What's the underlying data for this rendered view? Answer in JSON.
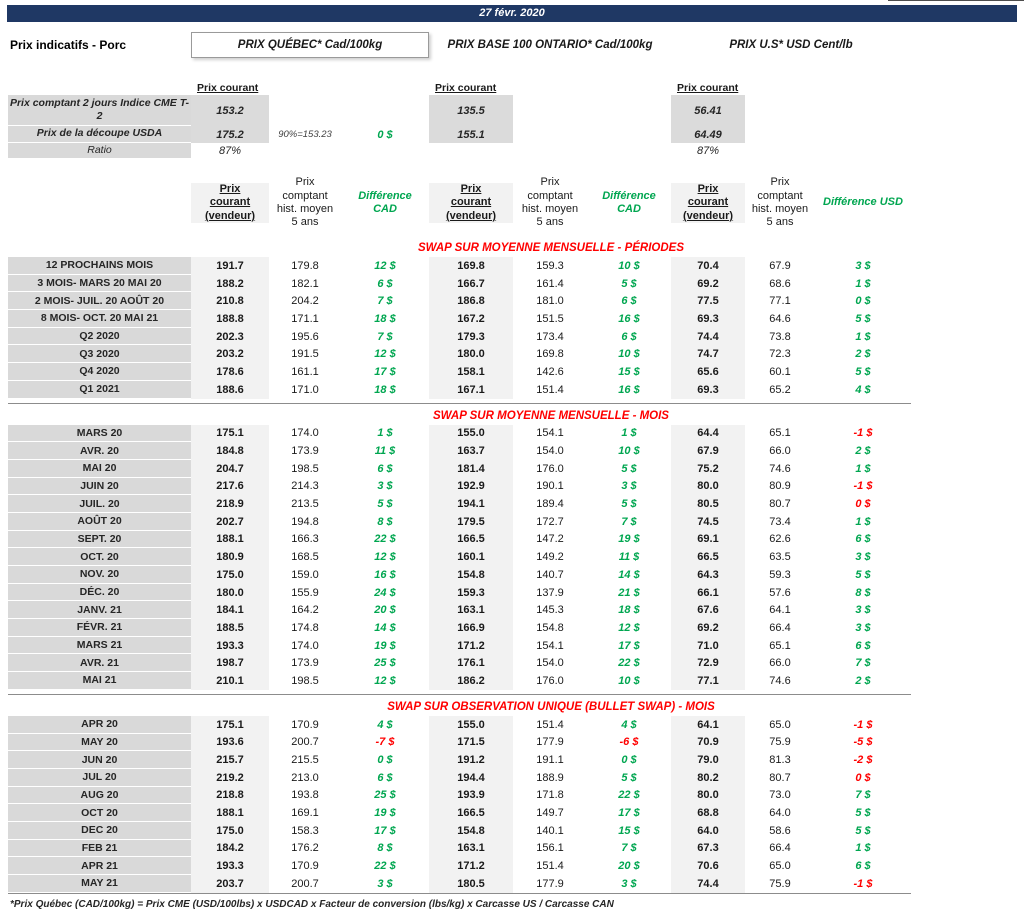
{
  "page": {
    "date": "27 févr. 2020",
    "title": "Prix indicatifs - Porc",
    "footnote": "*Prix Québec (CAD/100kg) = Prix CME (USD/100lbs) x USDCAD x Facteur de conversion (lbs/kg) x Carcasse US / Carcasse CAN"
  },
  "regions": [
    {
      "title": "PRIX QUÉBEC* Cad/100kg"
    },
    {
      "title": "PRIX BASE 100 ONTARIO* Cad/100kg"
    },
    {
      "title": "PRIX U.S* USD Cent/lb"
    }
  ],
  "labels": {
    "prix_courant": "Prix courant",
    "col_cur": "Prix courant (vendeur)",
    "col_hist": "Prix comptant hist. moyen 5 ans",
    "col_diff_cad": "Différence CAD",
    "col_diff_usd": "Différence USD"
  },
  "spot": [
    {
      "label": "Prix comptant 2 jours Indice CME T-2",
      "qc": "153.2",
      "on": "135.5",
      "us": "56.41"
    },
    {
      "label": "Prix de la découpe USDA",
      "qc": "175.2",
      "note": "90%=153.23",
      "diff": "0 $",
      "on": "155.1",
      "us": "64.49"
    },
    {
      "label": "Ratio",
      "qc": "87%",
      "us": "87%"
    }
  ],
  "tables": [
    {
      "title": "SWAP SUR MOYENNE MENSUELLE - PÉRIODES",
      "rows": [
        {
          "label": "12 PROCHAINS MOIS",
          "values": [
            "191.7",
            "179.8",
            "12 $",
            "169.8",
            "159.3",
            "10 $",
            "70.4",
            "67.9",
            "3 $"
          ],
          "colors": [
            "g",
            "g",
            "g"
          ]
        },
        {
          "label": "3 MOIS- MARS 20 MAI 20",
          "values": [
            "188.2",
            "182.1",
            "6 $",
            "166.7",
            "161.4",
            "5 $",
            "69.2",
            "68.6",
            "1 $"
          ],
          "colors": [
            "g",
            "g",
            "g"
          ]
        },
        {
          "label": "2 MOIS- JUIL. 20 AOÛT 20",
          "values": [
            "210.8",
            "204.2",
            "7 $",
            "186.8",
            "181.0",
            "6 $",
            "77.5",
            "77.1",
            "0 $"
          ],
          "colors": [
            "g",
            "g",
            "g"
          ]
        },
        {
          "label": "8 MOIS- OCT. 20 MAI 21",
          "values": [
            "188.8",
            "171.1",
            "18 $",
            "167.2",
            "151.5",
            "16 $",
            "69.3",
            "64.6",
            "5 $"
          ],
          "colors": [
            "g",
            "g",
            "g"
          ]
        },
        {
          "label": "Q2 2020",
          "values": [
            "202.3",
            "195.6",
            "7 $",
            "179.3",
            "173.4",
            "6 $",
            "74.4",
            "73.8",
            "1 $"
          ],
          "colors": [
            "g",
            "g",
            "g"
          ]
        },
        {
          "label": "Q3 2020",
          "values": [
            "203.2",
            "191.5",
            "12 $",
            "180.0",
            "169.8",
            "10 $",
            "74.7",
            "72.3",
            "2 $"
          ],
          "colors": [
            "g",
            "g",
            "g"
          ]
        },
        {
          "label": "Q4 2020",
          "values": [
            "178.6",
            "161.1",
            "17 $",
            "158.1",
            "142.6",
            "15 $",
            "65.6",
            "60.1",
            "5 $"
          ],
          "colors": [
            "g",
            "g",
            "g"
          ]
        },
        {
          "label": "Q1 2021",
          "values": [
            "188.6",
            "171.0",
            "18 $",
            "167.1",
            "151.4",
            "16 $",
            "69.3",
            "65.2",
            "4 $"
          ],
          "colors": [
            "g",
            "g",
            "g"
          ]
        }
      ]
    },
    {
      "title": "SWAP SUR MOYENNE MENSUELLE - MOIS",
      "rows": [
        {
          "label": "MARS 20",
          "values": [
            "175.1",
            "174.0",
            "1 $",
            "155.0",
            "154.1",
            "1 $",
            "64.4",
            "65.1",
            "-1 $"
          ],
          "colors": [
            "g",
            "g",
            "r"
          ]
        },
        {
          "label": "AVR. 20",
          "values": [
            "184.8",
            "173.9",
            "11 $",
            "163.7",
            "154.0",
            "10 $",
            "67.9",
            "66.0",
            "2 $"
          ],
          "colors": [
            "g",
            "g",
            "g"
          ]
        },
        {
          "label": "MAI 20",
          "values": [
            "204.7",
            "198.5",
            "6 $",
            "181.4",
            "176.0",
            "5 $",
            "75.2",
            "74.6",
            "1 $"
          ],
          "colors": [
            "g",
            "g",
            "g"
          ]
        },
        {
          "label": "JUIN 20",
          "values": [
            "217.6",
            "214.3",
            "3 $",
            "192.9",
            "190.1",
            "3 $",
            "80.0",
            "80.9",
            "-1 $"
          ],
          "colors": [
            "g",
            "g",
            "r"
          ]
        },
        {
          "label": "JUIL. 20",
          "values": [
            "218.9",
            "213.5",
            "5 $",
            "194.1",
            "189.4",
            "5 $",
            "80.5",
            "80.7",
            "0 $"
          ],
          "colors": [
            "g",
            "g",
            "r"
          ]
        },
        {
          "label": "AOÛT 20",
          "values": [
            "202.7",
            "194.8",
            "8 $",
            "179.5",
            "172.7",
            "7 $",
            "74.5",
            "73.4",
            "1 $"
          ],
          "colors": [
            "g",
            "g",
            "g"
          ]
        },
        {
          "label": "SEPT. 20",
          "values": [
            "188.1",
            "166.3",
            "22 $",
            "166.5",
            "147.2",
            "19 $",
            "69.1",
            "62.6",
            "6 $"
          ],
          "colors": [
            "g",
            "g",
            "g"
          ]
        },
        {
          "label": "OCT. 20",
          "values": [
            "180.9",
            "168.5",
            "12 $",
            "160.1",
            "149.2",
            "11 $",
            "66.5",
            "63.5",
            "3 $"
          ],
          "colors": [
            "g",
            "g",
            "g"
          ]
        },
        {
          "label": "NOV. 20",
          "values": [
            "175.0",
            "159.0",
            "16 $",
            "154.8",
            "140.7",
            "14 $",
            "64.3",
            "59.3",
            "5 $"
          ],
          "colors": [
            "g",
            "g",
            "g"
          ]
        },
        {
          "label": "DÉC. 20",
          "values": [
            "180.0",
            "155.9",
            "24 $",
            "159.3",
            "137.9",
            "21 $",
            "66.1",
            "57.6",
            "8 $"
          ],
          "colors": [
            "g",
            "g",
            "g"
          ]
        },
        {
          "label": "JANV. 21",
          "values": [
            "184.1",
            "164.2",
            "20 $",
            "163.1",
            "145.3",
            "18 $",
            "67.6",
            "64.1",
            "3 $"
          ],
          "colors": [
            "g",
            "g",
            "g"
          ]
        },
        {
          "label": "FÉVR. 21",
          "values": [
            "188.5",
            "174.8",
            "14 $",
            "166.9",
            "154.8",
            "12 $",
            "69.2",
            "66.4",
            "3 $"
          ],
          "colors": [
            "g",
            "g",
            "g"
          ]
        },
        {
          "label": "MARS 21",
          "values": [
            "193.3",
            "174.0",
            "19 $",
            "171.2",
            "154.1",
            "17 $",
            "71.0",
            "65.1",
            "6 $"
          ],
          "colors": [
            "g",
            "g",
            "g"
          ]
        },
        {
          "label": "AVR. 21",
          "values": [
            "198.7",
            "173.9",
            "25 $",
            "176.1",
            "154.0",
            "22 $",
            "72.9",
            "66.0",
            "7 $"
          ],
          "colors": [
            "g",
            "g",
            "g"
          ]
        },
        {
          "label": "MAI 21",
          "values": [
            "210.1",
            "198.5",
            "12 $",
            "186.2",
            "176.0",
            "10 $",
            "77.1",
            "74.6",
            "2 $"
          ],
          "colors": [
            "g",
            "g",
            "g"
          ]
        }
      ]
    },
    {
      "title": "SWAP SUR OBSERVATION UNIQUE (BULLET SWAP) - MOIS",
      "rows": [
        {
          "label": "APR 20",
          "values": [
            "175.1",
            "170.9",
            "4 $",
            "155.0",
            "151.4",
            "4 $",
            "64.1",
            "65.0",
            "-1 $"
          ],
          "colors": [
            "g",
            "g",
            "r"
          ]
        },
        {
          "label": "MAY 20",
          "values": [
            "193.6",
            "200.7",
            "-7 $",
            "171.5",
            "177.9",
            "-6 $",
            "70.9",
            "75.9",
            "-5 $"
          ],
          "colors": [
            "r",
            "r",
            "r"
          ]
        },
        {
          "label": "JUN 20",
          "values": [
            "215.7",
            "215.5",
            "0 $",
            "191.2",
            "191.1",
            "0 $",
            "79.0",
            "81.3",
            "-2 $"
          ],
          "colors": [
            "g",
            "g",
            "r"
          ]
        },
        {
          "label": "JUL 20",
          "values": [
            "219.2",
            "213.0",
            "6 $",
            "194.4",
            "188.9",
            "5 $",
            "80.2",
            "80.7",
            "0 $"
          ],
          "colors": [
            "g",
            "g",
            "r"
          ]
        },
        {
          "label": "AUG 20",
          "values": [
            "218.8",
            "193.8",
            "25 $",
            "193.9",
            "171.8",
            "22 $",
            "80.0",
            "73.0",
            "7 $"
          ],
          "colors": [
            "g",
            "g",
            "g"
          ]
        },
        {
          "label": "OCT 20",
          "values": [
            "188.1",
            "169.1",
            "19 $",
            "166.5",
            "149.7",
            "17 $",
            "68.8",
            "64.0",
            "5 $"
          ],
          "colors": [
            "g",
            "g",
            "g"
          ]
        },
        {
          "label": "DEC 20",
          "values": [
            "175.0",
            "158.3",
            "17 $",
            "154.8",
            "140.1",
            "15 $",
            "64.0",
            "58.6",
            "5 $"
          ],
          "colors": [
            "g",
            "g",
            "g"
          ]
        },
        {
          "label": "FEB 21",
          "values": [
            "184.2",
            "176.2",
            "8 $",
            "163.1",
            "156.1",
            "7 $",
            "67.3",
            "66.4",
            "1 $"
          ],
          "colors": [
            "g",
            "g",
            "g"
          ]
        },
        {
          "label": "APR 21",
          "values": [
            "193.3",
            "170.9",
            "22 $",
            "171.2",
            "151.4",
            "20 $",
            "70.6",
            "65.0",
            "6 $"
          ],
          "colors": [
            "g",
            "g",
            "g"
          ]
        },
        {
          "label": "MAY 21",
          "values": [
            "203.7",
            "200.7",
            "3 $",
            "180.5",
            "177.9",
            "3 $",
            "74.4",
            "75.9",
            "-1 $"
          ],
          "colors": [
            "g",
            "g",
            "r"
          ]
        }
      ]
    }
  ]
}
